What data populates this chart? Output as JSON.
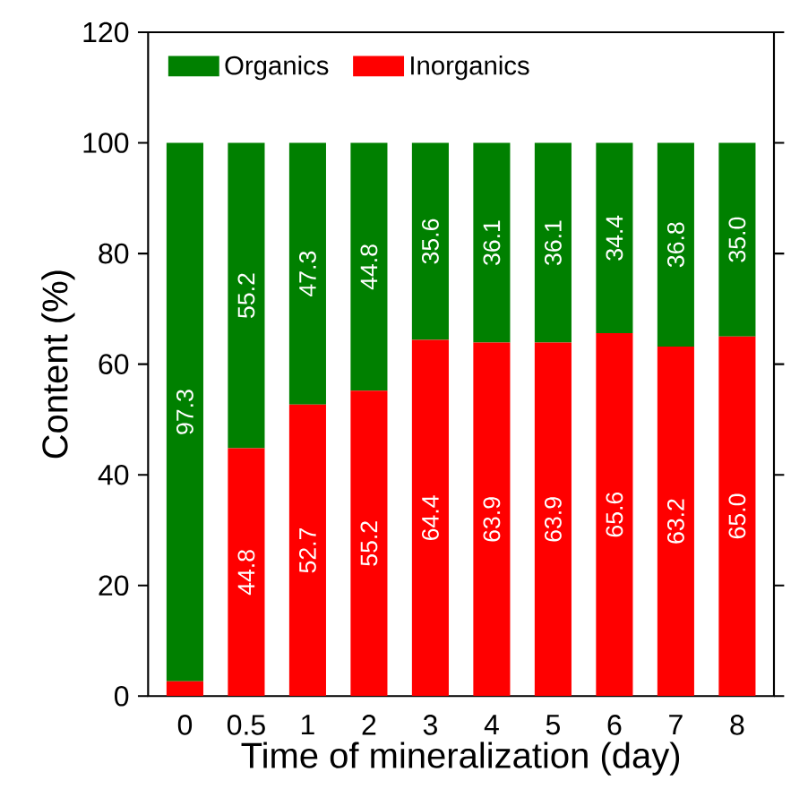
{
  "chart_data": {
    "type": "bar",
    "stacked": true,
    "xlabel": "Time of mineralization (day)",
    "ylabel": "Content (%)",
    "categories": [
      "0",
      "0.5",
      "1",
      "2",
      "3",
      "4",
      "5",
      "6",
      "7",
      "8"
    ],
    "series": [
      {
        "name": "Inorganics",
        "color": "#ff0000",
        "values": [
          2.7,
          44.8,
          52.7,
          55.2,
          64.4,
          63.9,
          63.9,
          65.6,
          63.2,
          65.0
        ],
        "value_labels": [
          null,
          "44.8",
          "52.7",
          "55.2",
          "64.4",
          "63.9",
          "63.9",
          "65.6",
          "63.2",
          "65.0"
        ]
      },
      {
        "name": "Organics",
        "color": "#008000",
        "values": [
          97.3,
          55.2,
          47.3,
          44.8,
          35.6,
          36.1,
          36.1,
          34.4,
          36.8,
          35.0
        ],
        "value_labels": [
          "97.3",
          "55.2",
          "47.3",
          "44.8",
          "35.6",
          "36.1",
          "36.1",
          "34.4",
          "36.8",
          "35.0"
        ]
      }
    ],
    "ylim": [
      0,
      120
    ],
    "yticks": [
      0,
      20,
      40,
      60,
      80,
      100,
      120
    ],
    "legend": "top left"
  }
}
